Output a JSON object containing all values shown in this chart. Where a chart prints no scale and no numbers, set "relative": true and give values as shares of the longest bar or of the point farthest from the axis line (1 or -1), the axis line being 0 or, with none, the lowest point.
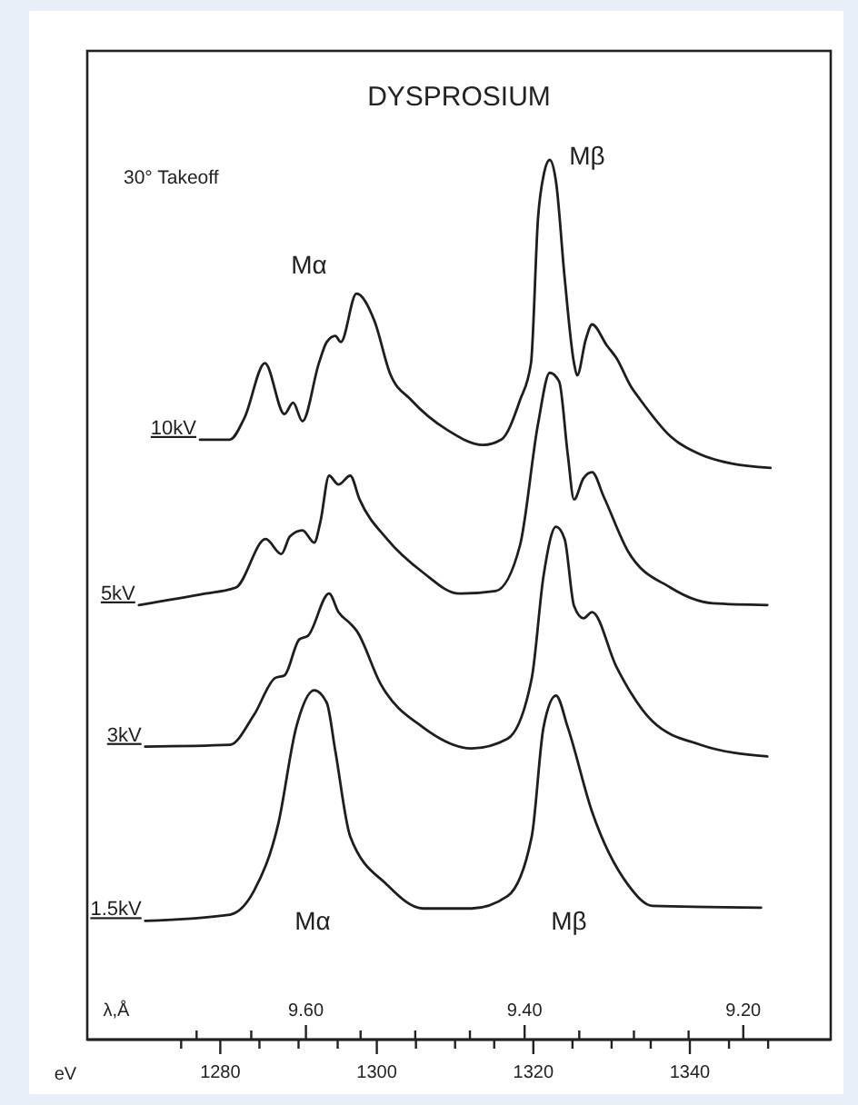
{
  "chart_data": {
    "type": "line",
    "title": "DYSPROSIUM",
    "xlabel": "eV",
    "x2label": "λ,Å",
    "relative": true,
    "marker": "none",
    "line_style": "solid",
    "xlim": [
      1263,
      1358
    ],
    "xticks": [
      {
        "value": 1275,
        "label": null
      },
      1280,
      {
        "value": 1285,
        "label": null
      },
      {
        "value": 1290,
        "label": null
      },
      {
        "value": 1295,
        "label": null
      },
      1300,
      {
        "value": 1305,
        "label": null
      },
      {
        "value": 1310,
        "label": null
      },
      {
        "value": 1315,
        "label": null
      },
      1320,
      {
        "value": 1325,
        "label": null
      },
      {
        "value": 1330,
        "label": null
      },
      {
        "value": 1335,
        "label": null
      },
      1340,
      {
        "value": 1345,
        "label": null
      },
      {
        "value": 1350,
        "label": null
      }
    ],
    "x2lim": [
      9.8,
      9.12
    ],
    "x2ticks": [
      {
        "value": 9.7,
        "label": null
      },
      {
        "value": 9.65,
        "label": null
      },
      {
        "value": 9.6,
        "label": "9.60"
      },
      {
        "value": 9.55,
        "label": null
      },
      {
        "value": 9.5,
        "label": null
      },
      {
        "value": 9.45,
        "label": null
      },
      {
        "value": 9.4,
        "label": "9.40"
      },
      {
        "value": 9.35,
        "label": null
      },
      {
        "value": 9.3,
        "label": null
      },
      {
        "value": 9.25,
        "label": null
      },
      {
        "value": 9.2,
        "label": "9.20"
      }
    ],
    "annotations": [
      "30° Takeoff",
      "Mα",
      "Mβ",
      "Mα",
      "Mβ"
    ],
    "series": [
      {
        "name": "10kV",
        "color": "#1e1e1e",
        "x": [
          1277.4,
          1281.2,
          1283.1,
          1285.7,
          1288.2,
          1289.3,
          1290.5,
          1292.6,
          1293.6,
          1294.7,
          1295.4,
          1297.4,
          1299.7,
          1301.7,
          1304.4,
          1309.0,
          1313.6,
          1315.9,
          1318.3,
          1319.7,
          1320.6,
          1321.3,
          1322.1,
          1322.9,
          1324.0,
          1325.2,
          1325.6,
          1326.7,
          1327.5,
          1329.4,
          1330.6,
          1332.5,
          1333.7,
          1337.5,
          1341.4,
          1345.2,
          1350.3
        ],
        "values": [
          0.682,
          0.682,
          0.707,
          0.769,
          0.711,
          0.724,
          0.703,
          0.769,
          0.793,
          0.8,
          0.793,
          0.848,
          0.817,
          0.757,
          0.727,
          0.693,
          0.676,
          0.682,
          0.727,
          0.769,
          0.934,
          0.982,
          1.0,
          0.975,
          0.866,
          0.769,
          0.755,
          0.796,
          0.813,
          0.789,
          0.775,
          0.742,
          0.727,
          0.686,
          0.665,
          0.655,
          0.65
        ]
      },
      {
        "name": "5kV",
        "color": "#1e1e1e",
        "x": [
          1269.6,
          1278.1,
          1282.0,
          1285.8,
          1287.8,
          1288.9,
          1290.5,
          1292.0,
          1292.8,
          1293.9,
          1295.1,
          1296.6,
          1297.8,
          1301.3,
          1305.9,
          1310.5,
          1315.2,
          1318.3,
          1320.6,
          1322.1,
          1323.3,
          1324.4,
          1325.2,
          1326.4,
          1327.5,
          1329.0,
          1332.1,
          1337.5,
          1342.9,
          1349.9
        ],
        "values": [
          0.494,
          0.507,
          0.514,
          0.569,
          0.552,
          0.572,
          0.579,
          0.565,
          0.589,
          0.641,
          0.631,
          0.641,
          0.614,
          0.569,
          0.531,
          0.507,
          0.51,
          0.562,
          0.7,
          0.758,
          0.748,
          0.665,
          0.614,
          0.638,
          0.645,
          0.617,
          0.555,
          0.514,
          0.496,
          0.494
        ]
      },
      {
        "name": "3kV",
        "color": "#1e1e1e",
        "x": [
          1270.4,
          1281.2,
          1284.3,
          1287.0,
          1288.2,
          1290.1,
          1291.2,
          1293.9,
          1295.1,
          1296.6,
          1297.4,
          1300.5,
          1305.9,
          1312.1,
          1316.7,
          1319.8,
          1321.3,
          1322.9,
          1324.0,
          1325.2,
          1326.4,
          1327.5,
          1330.6,
          1335.2,
          1341.4,
          1349.9
        ],
        "values": [
          0.333,
          0.335,
          0.369,
          0.411,
          0.414,
          0.455,
          0.459,
          0.507,
          0.486,
          0.473,
          0.465,
          0.404,
          0.355,
          0.331,
          0.342,
          0.411,
          0.527,
          0.583,
          0.569,
          0.493,
          0.479,
          0.486,
          0.424,
          0.362,
          0.335,
          0.322
        ]
      },
      {
        "name": "1.5kV",
        "color": "#1e1e1e",
        "x": [
          1270.4,
          1281.2,
          1284.3,
          1287.4,
          1289.7,
          1292.0,
          1293.6,
          1294.7,
          1296.6,
          1301.3,
          1305.9,
          1312.1,
          1316.7,
          1319.8,
          1321.3,
          1322.9,
          1324.4,
          1327.5,
          1332.1,
          1335.2,
          1349.1
        ],
        "values": [
          0.135,
          0.142,
          0.169,
          0.245,
          0.355,
          0.397,
          0.383,
          0.328,
          0.231,
          0.176,
          0.149,
          0.149,
          0.163,
          0.231,
          0.355,
          0.391,
          0.355,
          0.259,
          0.176,
          0.152,
          0.15
        ]
      }
    ]
  }
}
